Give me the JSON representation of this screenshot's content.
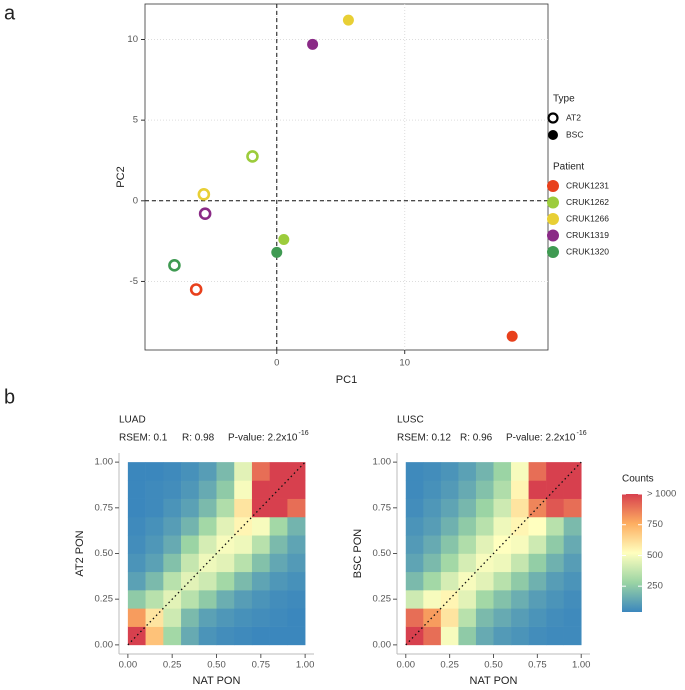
{
  "chart_data": [
    {
      "type": "scatter",
      "panel": "a",
      "x_label": "PC1",
      "y_label": "PC2",
      "xlim": [
        -10.3,
        21.2
      ],
      "ylim": [
        -9.25,
        12.2
      ],
      "xticks": [
        0,
        10
      ],
      "yticks": [
        -5,
        0,
        5,
        10
      ],
      "grid": true,
      "shape_legend": {
        "title": "Type",
        "items": [
          "AT2",
          "BSC"
        ]
      },
      "legend_title": "Patient",
      "series": [
        {
          "name": "CRUK1231",
          "color": "#e8401c",
          "x": [
            -6.3,
            18.4
          ],
          "y": [
            -5.5,
            -8.4
          ],
          "kind": [
            "AT2",
            "BSC"
          ]
        },
        {
          "name": "CRUK1262",
          "color": "#9ccc3c",
          "x": [
            -1.9,
            0.55
          ],
          "y": [
            2.75,
            -2.4
          ],
          "kind": [
            "AT2",
            "BSC"
          ]
        },
        {
          "name": "CRUK1266",
          "color": "#e8cf35",
          "x": [
            -5.7,
            5.6
          ],
          "y": [
            0.4,
            11.2
          ],
          "kind": [
            "AT2",
            "BSC"
          ]
        },
        {
          "name": "CRUK1319",
          "color": "#8a2a86",
          "x": [
            -5.6,
            2.8
          ],
          "y": [
            -0.8,
            9.7
          ],
          "kind": [
            "AT2",
            "BSC"
          ]
        },
        {
          "name": "CRUK1320",
          "color": "#3f9a52",
          "x": [
            -8.0,
            0
          ],
          "y": [
            -4.0,
            -3.2
          ],
          "kind": [
            "AT2",
            "BSC"
          ]
        }
      ]
    },
    {
      "type": "heatmap",
      "panel": "b",
      "title": "LUAD",
      "rsem": "RSEM: 0.1",
      "r": "R: 0.98",
      "p_value": "P-value: 2.2x10",
      "p_exp": "-16",
      "x_label": "NAT PON",
      "y_label": "AT2 PON",
      "xlim": [
        -0.05,
        1.05
      ],
      "ylim": [
        -0.05,
        1.05
      ],
      "xticks": [
        {
          "value": 0,
          "label": "0.00"
        },
        {
          "value": 0.25,
          "label": "0.25"
        },
        {
          "value": 0.5,
          "label": "0.50"
        },
        {
          "value": 0.75,
          "label": "0.75"
        },
        {
          "value": 1,
          "label": "1.00"
        }
      ],
      "yticks": [
        {
          "value": 0,
          "label": "0.00"
        },
        {
          "value": 0.25,
          "label": "0.25"
        },
        {
          "value": 0.5,
          "label": "0.50"
        },
        {
          "value": 0.75,
          "label": "0.75"
        },
        {
          "value": 1,
          "label": "1.00"
        }
      ],
      "bins": [
        0,
        0.1,
        0.2,
        0.3,
        0.4,
        0.5,
        0.6,
        0.7,
        0.8,
        0.9,
        1.0
      ],
      "values": [
        [
          1000,
          700,
          300,
          150,
          80,
          60,
          50,
          40,
          40,
          40
        ],
        [
          800,
          600,
          400,
          200,
          120,
          90,
          70,
          60,
          50,
          40
        ],
        [
          250,
          350,
          450,
          350,
          250,
          160,
          110,
          80,
          60,
          50
        ],
        [
          120,
          200,
          350,
          450,
          400,
          300,
          200,
          130,
          90,
          70
        ],
        [
          80,
          120,
          220,
          380,
          480,
          450,
          350,
          220,
          140,
          100
        ],
        [
          60,
          90,
          150,
          280,
          420,
          500,
          480,
          350,
          200,
          130
        ],
        [
          50,
          70,
          110,
          180,
          300,
          450,
          550,
          500,
          300,
          180
        ],
        [
          40,
          50,
          80,
          120,
          200,
          330,
          600,
          1000,
          1000,
          900
        ],
        [
          40,
          50,
          60,
          90,
          150,
          250,
          500,
          1000,
          1000,
          1000
        ],
        [
          40,
          40,
          50,
          70,
          110,
          200,
          450,
          900,
          1000,
          1000
        ]
      ]
    },
    {
      "type": "heatmap",
      "title": "LUSC",
      "rsem": "RSEM: 0.12",
      "r": "R: 0.96",
      "p_value": "P-value: 2.2x10",
      "p_exp": "-16",
      "x_label": "NAT PON",
      "y_label": "BSC PON",
      "xlim": [
        -0.05,
        1.05
      ],
      "ylim": [
        -0.05,
        1.05
      ],
      "xticks": [
        {
          "value": 0,
          "label": "0.00"
        },
        {
          "value": 0.25,
          "label": "0.25"
        },
        {
          "value": 0.5,
          "label": "0.50"
        },
        {
          "value": 0.75,
          "label": "0.75"
        },
        {
          "value": 1,
          "label": "1.00"
        }
      ],
      "yticks": [
        {
          "value": 0,
          "label": "0.00"
        },
        {
          "value": 0.25,
          "label": "0.25"
        },
        {
          "value": 0.5,
          "label": "0.50"
        },
        {
          "value": 0.75,
          "label": "0.75"
        },
        {
          "value": 1,
          "label": "1.00"
        }
      ],
      "bins": [
        0,
        0.1,
        0.2,
        0.3,
        0.4,
        0.5,
        0.6,
        0.7,
        0.8,
        0.9,
        1.0
      ],
      "values": [
        [
          1000,
          900,
          500,
          250,
          150,
          100,
          80,
          60,
          50,
          50
        ],
        [
          900,
          800,
          600,
          350,
          200,
          150,
          110,
          80,
          60,
          50
        ],
        [
          400,
          500,
          550,
          450,
          300,
          220,
          160,
          110,
          80,
          60
        ],
        [
          200,
          300,
          420,
          500,
          450,
          350,
          250,
          170,
          110,
          80
        ],
        [
          130,
          200,
          300,
          420,
          500,
          480,
          380,
          260,
          170,
          110
        ],
        [
          100,
          150,
          230,
          330,
          450,
          520,
          500,
          400,
          250,
          150
        ],
        [
          80,
          110,
          170,
          250,
          350,
          480,
          550,
          520,
          350,
          200
        ],
        [
          60,
          90,
          130,
          190,
          280,
          400,
          600,
          850,
          950,
          900
        ],
        [
          50,
          70,
          100,
          150,
          220,
          330,
          550,
          1000,
          1000,
          1000
        ],
        [
          50,
          60,
          80,
          120,
          180,
          280,
          500,
          900,
          1000,
          1000
        ]
      ]
    }
  ],
  "colorbar": {
    "title": "Counts",
    "zlim": [
      40,
      1000
    ],
    "colors": [
      "#3b87bd",
      "#9bd4a4",
      "#ffffbf",
      "#fdae61",
      "#d7404e"
    ],
    "ticks": [
      250,
      500,
      750,
      {
        "value": 1000,
        "label": "> 1000"
      }
    ]
  }
}
